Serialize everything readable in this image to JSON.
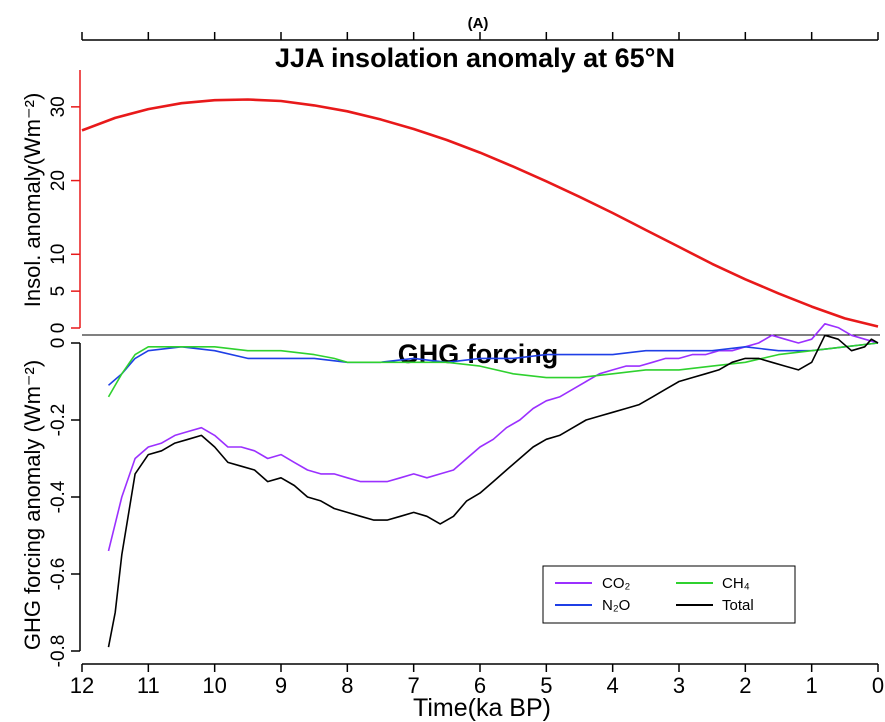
{
  "figure_tag": "(A)",
  "x_axis": {
    "label": "Time(ka BP)",
    "range": [
      12,
      0
    ],
    "ticks": [
      "12",
      "11",
      "10",
      "9",
      "8",
      "7",
      "6",
      "5",
      "4",
      "3",
      "2",
      "1",
      "0"
    ]
  },
  "colors": {
    "insolation": "#e8191a",
    "co2": "#9b30ff",
    "n2o": "#1f3fe6",
    "ch4": "#2fd12f",
    "total": "#000000"
  },
  "chart_data": [
    {
      "type": "line",
      "title": "JJA insolation anomaly at 65°N",
      "xlabel": "",
      "ylabel": "Insol. anomaly(Wm⁻²)",
      "xlim": [
        12,
        0
      ],
      "ylim": [
        0,
        35
      ],
      "yticks": [
        "0",
        "5",
        "10",
        "20",
        "30"
      ],
      "series": [
        {
          "name": "",
          "x": [
            12,
            11.5,
            11,
            10.5,
            10,
            9.5,
            9,
            8.5,
            8,
            7.5,
            7,
            6.5,
            6,
            5.5,
            5,
            4.5,
            4,
            3.5,
            3,
            2.5,
            2,
            1.5,
            1,
            0.5,
            0
          ],
          "values": [
            26.8,
            28.5,
            29.7,
            30.5,
            30.9,
            31.0,
            30.8,
            30.2,
            29.4,
            28.3,
            27.0,
            25.5,
            23.8,
            21.9,
            19.9,
            17.8,
            15.6,
            13.3,
            11.0,
            8.7,
            6.6,
            4.7,
            2.9,
            1.3,
            0.2
          ]
        }
      ]
    },
    {
      "type": "line",
      "title": "GHG forcing",
      "xlabel": "Time(ka BP)",
      "ylabel": "GHG forcing anomaly (Wm⁻²)",
      "xlim": [
        12,
        0
      ],
      "ylim": [
        -0.8,
        0
      ],
      "yticks": [
        "-0.8",
        "-0.6",
        "-0.4",
        "-0.2",
        "0"
      ],
      "legend_position": "bottom-right",
      "series": [
        {
          "name": "CO₂",
          "x": [
            11.6,
            11.4,
            11.2,
            11.0,
            10.8,
            10.6,
            10.4,
            10.2,
            10.0,
            9.8,
            9.6,
            9.4,
            9.2,
            9.0,
            8.8,
            8.6,
            8.4,
            8.2,
            8.0,
            7.8,
            7.6,
            7.4,
            7.2,
            7.0,
            6.8,
            6.6,
            6.4,
            6.2,
            6.0,
            5.8,
            5.6,
            5.4,
            5.2,
            5.0,
            4.8,
            4.6,
            4.4,
            4.2,
            4.0,
            3.8,
            3.6,
            3.4,
            3.2,
            3.0,
            2.8,
            2.6,
            2.4,
            2.2,
            2.0,
            1.8,
            1.6,
            1.4,
            1.2,
            1.0,
            0.8,
            0.6,
            0.4,
            0.2,
            0.0
          ],
          "values": [
            -0.54,
            -0.4,
            -0.3,
            -0.27,
            -0.26,
            -0.24,
            -0.23,
            -0.22,
            -0.24,
            -0.27,
            -0.27,
            -0.28,
            -0.3,
            -0.29,
            -0.31,
            -0.33,
            -0.34,
            -0.34,
            -0.35,
            -0.36,
            -0.36,
            -0.36,
            -0.35,
            -0.34,
            -0.35,
            -0.34,
            -0.33,
            -0.3,
            -0.27,
            -0.25,
            -0.22,
            -0.2,
            -0.17,
            -0.15,
            -0.14,
            -0.12,
            -0.1,
            -0.08,
            -0.07,
            -0.06,
            -0.06,
            -0.05,
            -0.04,
            -0.04,
            -0.03,
            -0.03,
            -0.02,
            -0.02,
            -0.01,
            0.0,
            0.02,
            0.01,
            0.0,
            0.01,
            0.05,
            0.04,
            0.02,
            0.01,
            0.0
          ]
        },
        {
          "name": "N₂O",
          "x": [
            11.6,
            11.4,
            11.2,
            11.0,
            10.5,
            10.0,
            9.5,
            9.0,
            8.5,
            8.0,
            7.5,
            7.0,
            6.5,
            6.0,
            5.5,
            5.0,
            4.5,
            4.0,
            3.5,
            3.0,
            2.5,
            2.0,
            1.5,
            1.0,
            0.5,
            0.0
          ],
          "values": [
            -0.11,
            -0.08,
            -0.04,
            -0.02,
            -0.01,
            -0.02,
            -0.04,
            -0.04,
            -0.04,
            -0.05,
            -0.05,
            -0.04,
            -0.05,
            -0.04,
            -0.04,
            -0.03,
            -0.03,
            -0.03,
            -0.02,
            -0.02,
            -0.02,
            -0.01,
            -0.02,
            -0.02,
            -0.01,
            0.0
          ]
        },
        {
          "name": "CH₄",
          "x": [
            11.6,
            11.4,
            11.2,
            11.0,
            10.8,
            10.5,
            10.0,
            9.5,
            9.0,
            8.5,
            8.2,
            8.0,
            7.5,
            7.0,
            6.5,
            6.0,
            5.5,
            5.0,
            4.5,
            4.0,
            3.5,
            3.0,
            2.5,
            2.0,
            1.5,
            1.0,
            0.5,
            0.0
          ],
          "values": [
            -0.14,
            -0.08,
            -0.03,
            -0.01,
            -0.01,
            -0.01,
            -0.01,
            -0.02,
            -0.02,
            -0.03,
            -0.04,
            -0.05,
            -0.05,
            -0.05,
            -0.05,
            -0.06,
            -0.08,
            -0.09,
            -0.09,
            -0.08,
            -0.07,
            -0.07,
            -0.06,
            -0.05,
            -0.03,
            -0.02,
            -0.01,
            0.0
          ]
        },
        {
          "name": "Total",
          "x": [
            11.6,
            11.5,
            11.4,
            11.2,
            11.0,
            10.8,
            10.6,
            10.4,
            10.2,
            10.0,
            9.8,
            9.6,
            9.4,
            9.2,
            9.0,
            8.8,
            8.6,
            8.4,
            8.2,
            8.0,
            7.8,
            7.6,
            7.4,
            7.2,
            7.0,
            6.8,
            6.6,
            6.4,
            6.2,
            6.0,
            5.8,
            5.6,
            5.4,
            5.2,
            5.0,
            4.8,
            4.6,
            4.4,
            4.2,
            4.0,
            3.8,
            3.6,
            3.4,
            3.2,
            3.0,
            2.8,
            2.6,
            2.4,
            2.2,
            2.0,
            1.8,
            1.6,
            1.4,
            1.2,
            1.0,
            0.8,
            0.6,
            0.4,
            0.2,
            0.1,
            0.0
          ],
          "values": [
            -0.79,
            -0.7,
            -0.55,
            -0.34,
            -0.29,
            -0.28,
            -0.26,
            -0.25,
            -0.24,
            -0.27,
            -0.31,
            -0.32,
            -0.33,
            -0.36,
            -0.35,
            -0.37,
            -0.4,
            -0.41,
            -0.43,
            -0.44,
            -0.45,
            -0.46,
            -0.46,
            -0.45,
            -0.44,
            -0.45,
            -0.47,
            -0.45,
            -0.41,
            -0.39,
            -0.36,
            -0.33,
            -0.3,
            -0.27,
            -0.25,
            -0.24,
            -0.22,
            -0.2,
            -0.19,
            -0.18,
            -0.17,
            -0.16,
            -0.14,
            -0.12,
            -0.1,
            -0.09,
            -0.08,
            -0.07,
            -0.05,
            -0.04,
            -0.04,
            -0.05,
            -0.06,
            -0.07,
            -0.05,
            0.02,
            0.01,
            -0.02,
            -0.01,
            0.01,
            0.0
          ]
        }
      ]
    }
  ]
}
